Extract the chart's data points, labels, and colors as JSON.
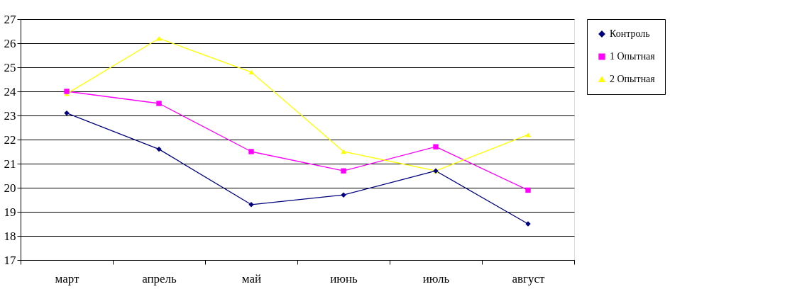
{
  "chart_data": {
    "type": "line",
    "categories": [
      "март",
      "апрель",
      "май",
      "июнь",
      "июль",
      "август"
    ],
    "series": [
      {
        "name": "Контроль",
        "color": "#000080",
        "marker": "diamond",
        "values": [
          23.1,
          21.6,
          19.3,
          19.7,
          20.7,
          18.5
        ]
      },
      {
        "name": "1 Опытная",
        "color": "#ff00ff",
        "marker": "square",
        "values": [
          24.0,
          23.5,
          21.5,
          20.7,
          21.7,
          19.9
        ]
      },
      {
        "name": "2 Опытная",
        "color": "#ffff00",
        "marker": "triangle",
        "values": [
          23.9,
          26.2,
          24.8,
          21.5,
          20.7,
          22.2
        ]
      }
    ],
    "ylim": [
      17,
      27
    ],
    "yticks": [
      17,
      18,
      19,
      20,
      21,
      22,
      23,
      24,
      25,
      26,
      27
    ],
    "grid": "y",
    "legend": "right",
    "line_style": "solid"
  }
}
